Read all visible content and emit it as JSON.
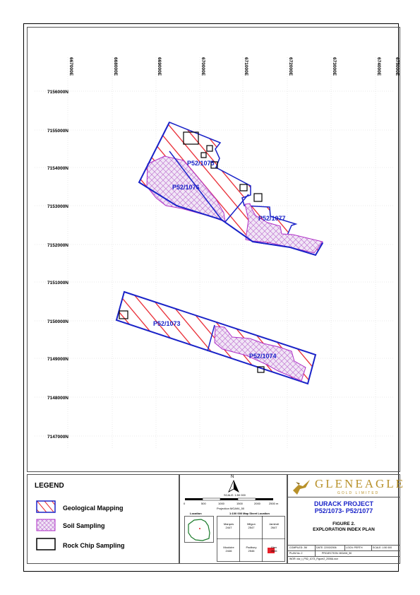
{
  "map": {
    "easting_labels": [
      "667000E",
      "668000E",
      "669000E",
      "670000E",
      "671000E",
      "672000E",
      "673000E",
      "674000E",
      "675000E"
    ],
    "northing_labels": [
      "7156000N",
      "7155000N",
      "7154000N",
      "7153000N",
      "7152000N",
      "7151000N",
      "7150000N",
      "7149000N",
      "7148000N",
      "7147000N"
    ],
    "tenements": [
      "P52/1075",
      "P52/1076",
      "P52/1077",
      "P52/1073",
      "P52/1074"
    ]
  },
  "legend": {
    "title": "LEGEND",
    "items": [
      "Geological Mapping",
      "Soil Sampling",
      "Rock Chip Sampling"
    ]
  },
  "scale": {
    "north": "N",
    "scale_text": "SCALE: 1:50 000",
    "ticks": [
      "0",
      "500",
      "1000",
      "1500",
      "2000",
      "2500 m"
    ],
    "projection": "Projection MGA94_50",
    "location_label": "Location",
    "sheet_title": "1:100 000 Map Sheet Location",
    "sheets": [
      {
        "name": "Marquis",
        "num": "2447"
      },
      {
        "name": "Milgun",
        "num": "2547"
      },
      {
        "name": "Jamindi",
        "num": "2647"
      },
      {
        "name": "Mooloire",
        "num": "2446"
      },
      {
        "name": "Padbury",
        "num": "2546"
      },
      {
        "name": "Glen",
        "num": "2646"
      }
    ]
  },
  "title_block": {
    "company": "GLENEAGLE",
    "company_sub": "GOLD LIMITED",
    "project": "DURACK PROJECT",
    "tenements": "P52/1073- P52/1077",
    "figure": "FIGURE 2.",
    "figure_title": "EXPLORATION INDEX PLAN",
    "compiled": "COMPILED: JM",
    "date": "DATE: 22/03/2006",
    "location": "LOCN: PERTH",
    "scale": "SCALE: 1:50 000",
    "plan_no": "PLAN No: 2",
    "projection": "PROJECTION: MGA94_50",
    "wor": "WOR: dur_t_P52_1073_Figure2_2006A.wor"
  },
  "colors": {
    "hatch_red": "#e8202a",
    "tenement_blue": "#1a23c8",
    "soil_purple": "#b030c8",
    "gold": "#b8912a"
  }
}
